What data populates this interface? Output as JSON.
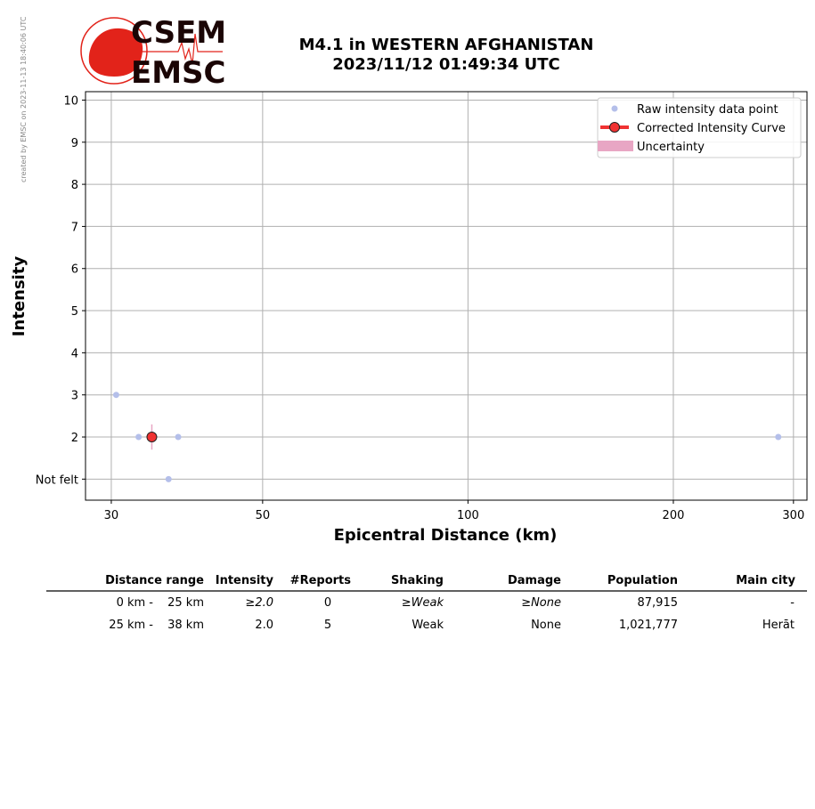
{
  "side_note": "created by EMSC on 2023-11-13 18:40:06 UTC",
  "logo": {
    "top": "CSEM",
    "bottom": "EMSC",
    "color": "#e2231a"
  },
  "title": {
    "line1": "M4.1 in WESTERN AFGHANISTAN",
    "line2": "2023/11/12 01:49:34 UTC"
  },
  "chart_data": {
    "type": "scatter",
    "xlabel": "Epicentral Distance (km)",
    "ylabel": "Intensity",
    "x_scale": "log",
    "xlim": [
      27.5,
      314
    ],
    "ylim": [
      0.5,
      10.2
    ],
    "x_ticks": [
      30,
      50,
      100,
      200,
      300
    ],
    "y_ticks": [
      {
        "value": 1,
        "label": "Not felt"
      },
      {
        "value": 2,
        "label": "2"
      },
      {
        "value": 3,
        "label": "3"
      },
      {
        "value": 4,
        "label": "4"
      },
      {
        "value": 5,
        "label": "5"
      },
      {
        "value": 6,
        "label": "6"
      },
      {
        "value": 7,
        "label": "7"
      },
      {
        "value": 8,
        "label": "8"
      },
      {
        "value": 9,
        "label": "9"
      },
      {
        "value": 10,
        "label": "10"
      }
    ],
    "grid": true,
    "legend_position": "top-right",
    "series": [
      {
        "name": "Raw intensity data point",
        "color": "#b4bfea",
        "points": [
          {
            "x": 30.5,
            "y": 3
          },
          {
            "x": 32.9,
            "y": 2
          },
          {
            "x": 37.6,
            "y": 2
          },
          {
            "x": 36.4,
            "y": 1
          },
          {
            "x": 285,
            "y": 2
          }
        ]
      },
      {
        "name": "Corrected Intensity Curve",
        "color": "#f03232",
        "points": [
          {
            "x": 34.4,
            "y": 2
          }
        ]
      },
      {
        "name": "Uncertainty",
        "color": "#e8a6c4",
        "ranges": [
          {
            "x": 34.4,
            "low": 1.7,
            "high": 2.3
          }
        ]
      }
    ]
  },
  "table": {
    "headers": [
      "Distance range",
      "Intensity",
      "#Reports",
      "Shaking",
      "Damage",
      "Population",
      "Main city"
    ],
    "rows": [
      {
        "from": "0 km -",
        "to": "25 km",
        "intensity": "≥2.0",
        "reports": "0",
        "shaking": "≥Weak",
        "damage": "≥None",
        "population": "87,915",
        "city": "-",
        "italic": true
      },
      {
        "from": "25 km -",
        "to": "38 km",
        "intensity": "2.0",
        "reports": "5",
        "shaking": "Weak",
        "damage": "None",
        "population": "1,021,777",
        "city": "Herāt",
        "italic": false
      }
    ]
  }
}
